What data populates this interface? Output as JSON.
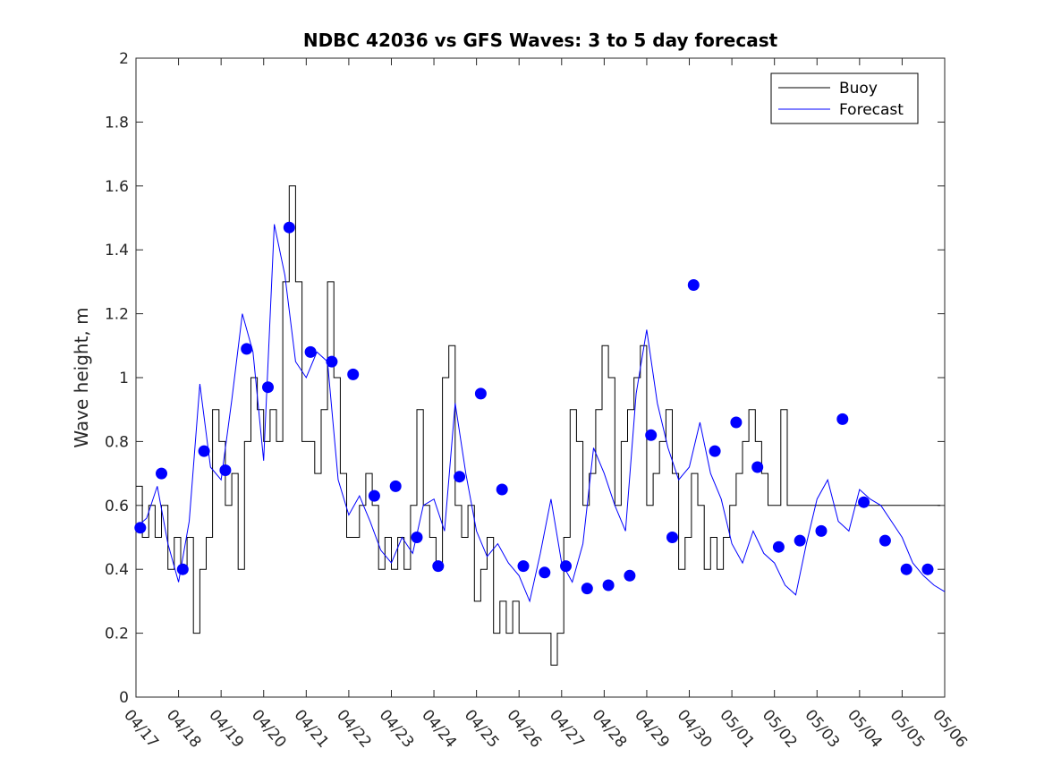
{
  "chart_data": {
    "type": "line",
    "title": "NDBC 42036 vs GFS Waves: 3 to 5 day forecast",
    "xlabel": "",
    "ylabel": "Wave height, m",
    "xlim": [
      0,
      19
    ],
    "ylim": [
      0,
      2
    ],
    "x_tick_labels": [
      "04/17",
      "04/18",
      "04/19",
      "04/20",
      "04/21",
      "04/22",
      "04/23",
      "04/24",
      "04/25",
      "04/26",
      "04/27",
      "04/28",
      "04/29",
      "04/30",
      "05/01",
      "05/02",
      "05/03",
      "05/04",
      "05/05",
      "05/06"
    ],
    "y_tick_labels": [
      "0",
      "0.2",
      "0.4",
      "0.6",
      "0.8",
      "1",
      "1.2",
      "1.4",
      "1.6",
      "1.8",
      "2"
    ],
    "grid": false,
    "legend_position": "top-right",
    "colors": {
      "buoy": "#000000",
      "forecast": "#0000ff",
      "axis": "#262626"
    },
    "series": [
      {
        "name": "Buoy",
        "style": "step",
        "x": [
          0.0,
          0.15,
          0.3,
          0.45,
          0.6,
          0.75,
          0.9,
          1.05,
          1.2,
          1.35,
          1.5,
          1.65,
          1.8,
          1.95,
          2.1,
          2.25,
          2.4,
          2.55,
          2.7,
          2.85,
          3.0,
          3.15,
          3.3,
          3.45,
          3.6,
          3.75,
          3.9,
          4.05,
          4.2,
          4.35,
          4.5,
          4.65,
          4.8,
          4.95,
          5.1,
          5.25,
          5.4,
          5.55,
          5.7,
          5.85,
          6.0,
          6.15,
          6.3,
          6.45,
          6.6,
          6.75,
          6.9,
          7.05,
          7.2,
          7.35,
          7.5,
          7.65,
          7.8,
          7.95,
          8.1,
          8.25,
          8.4,
          8.55,
          8.7,
          8.85,
          9.0,
          9.15,
          9.3,
          9.45,
          9.6,
          9.75,
          9.9,
          10.05,
          10.2,
          10.35,
          10.5,
          10.65,
          10.8,
          10.95,
          11.1,
          11.25,
          11.4,
          11.55,
          11.7,
          11.85,
          12.0,
          12.15,
          12.3,
          12.45,
          12.6,
          12.75,
          12.9,
          13.05,
          13.2,
          13.35,
          13.5,
          13.65,
          13.8,
          13.95,
          14.1,
          14.25,
          14.4,
          14.55,
          14.7,
          14.85,
          15.0,
          15.15,
          15.3,
          15.45,
          15.6,
          15.75,
          15.9,
          16.05,
          16.2,
          16.35,
          16.5,
          16.65,
          16.8,
          16.95,
          17.1,
          17.25,
          17.4,
          17.55,
          17.7,
          17.85,
          18.0,
          18.15,
          18.3,
          18.45,
          18.6,
          18.75,
          18.9
        ],
        "y": [
          0.66,
          0.5,
          0.6,
          0.5,
          0.6,
          0.4,
          0.5,
          0.4,
          0.5,
          0.2,
          0.4,
          0.5,
          0.9,
          0.8,
          0.6,
          0.7,
          0.4,
          0.8,
          1.0,
          0.9,
          0.8,
          0.9,
          0.8,
          1.3,
          1.6,
          1.3,
          0.8,
          0.8,
          0.7,
          0.9,
          1.3,
          1.0,
          0.7,
          0.5,
          0.5,
          0.6,
          0.7,
          0.6,
          0.4,
          0.5,
          0.4,
          0.5,
          0.4,
          0.6,
          0.9,
          0.6,
          0.5,
          0.4,
          1.0,
          1.1,
          0.6,
          0.5,
          0.6,
          0.3,
          0.4,
          0.5,
          0.2,
          0.3,
          0.2,
          0.3,
          0.2,
          0.2,
          0.2,
          0.2,
          0.2,
          0.1,
          0.2,
          0.5,
          0.9,
          0.8,
          0.6,
          0.7,
          0.9,
          1.1,
          1.0,
          0.6,
          0.8,
          0.9,
          1.0,
          1.1,
          0.6,
          0.7,
          0.8,
          0.9,
          0.7,
          0.4,
          0.5,
          0.7,
          0.6,
          0.4,
          0.5,
          0.4,
          0.5,
          0.6,
          0.7,
          0.8,
          0.9,
          0.8,
          0.7,
          0.6,
          0.6,
          0.9,
          0.6,
          0.6,
          0.6,
          0.6,
          0.6,
          0.6,
          0.6,
          0.6,
          0.6,
          0.6,
          0.6,
          0.6,
          0.6,
          0.6,
          0.6,
          0.6,
          0.6,
          0.6,
          0.6,
          0.6,
          0.6,
          0.6,
          0.6,
          0.6,
          0.6
        ]
      },
      {
        "name": "Forecast",
        "style": "line",
        "x": [
          0.0,
          0.25,
          0.5,
          0.75,
          1.0,
          1.25,
          1.5,
          1.75,
          2.0,
          2.25,
          2.5,
          2.75,
          3.0,
          3.25,
          3.5,
          3.75,
          4.0,
          4.25,
          4.5,
          4.75,
          5.0,
          5.25,
          5.5,
          5.75,
          6.0,
          6.25,
          6.5,
          6.75,
          7.0,
          7.25,
          7.5,
          7.75,
          8.0,
          8.25,
          8.5,
          8.75,
          9.0,
          9.25,
          9.5,
          9.75,
          10.0,
          10.25,
          10.5,
          10.75,
          11.0,
          11.25,
          11.5,
          11.75,
          12.0,
          12.25,
          12.5,
          12.75,
          13.0,
          13.25,
          13.5,
          13.75,
          14.0,
          14.25,
          14.5,
          14.75,
          15.0,
          15.25,
          15.5,
          15.75,
          16.0,
          16.25,
          16.5,
          16.75,
          17.0,
          17.25,
          17.5,
          17.75,
          18.0,
          18.25,
          18.5,
          18.75,
          19.0
        ],
        "y": [
          0.53,
          0.56,
          0.66,
          0.48,
          0.36,
          0.55,
          0.98,
          0.72,
          0.68,
          0.93,
          1.2,
          1.08,
          0.74,
          1.48,
          1.32,
          1.05,
          1.0,
          1.08,
          1.05,
          0.68,
          0.57,
          0.63,
          0.55,
          0.46,
          0.42,
          0.5,
          0.45,
          0.6,
          0.62,
          0.52,
          0.92,
          0.7,
          0.52,
          0.44,
          0.48,
          0.42,
          0.38,
          0.3,
          0.45,
          0.62,
          0.42,
          0.36,
          0.48,
          0.78,
          0.7,
          0.6,
          0.52,
          0.95,
          1.15,
          0.92,
          0.78,
          0.68,
          0.72,
          0.86,
          0.7,
          0.62,
          0.48,
          0.42,
          0.52,
          0.45,
          0.42,
          0.35,
          0.32,
          0.48,
          0.62,
          0.68,
          0.55,
          0.52,
          0.65,
          0.62,
          0.6,
          0.55,
          0.5,
          0.42,
          0.38,
          0.35,
          0.33
        ]
      }
    ],
    "forecast_markers": {
      "x": [
        0.1,
        0.6,
        1.1,
        1.6,
        2.1,
        2.6,
        3.1,
        3.6,
        4.1,
        4.6,
        5.1,
        5.6,
        6.1,
        6.6,
        7.1,
        7.6,
        8.1,
        8.6,
        9.1,
        9.6,
        10.1,
        10.6,
        11.1,
        11.6,
        12.1,
        12.6,
        13.1,
        13.6,
        14.1,
        14.6,
        15.1,
        15.6,
        16.1,
        16.6,
        17.1,
        17.6,
        18.1,
        18.6
      ],
      "y": [
        0.53,
        0.7,
        0.4,
        0.77,
        0.71,
        1.09,
        0.97,
        1.47,
        1.08,
        1.05,
        1.01,
        0.63,
        0.66,
        0.5,
        0.41,
        0.69,
        0.95,
        0.65,
        0.41,
        0.39,
        0.41,
        0.34,
        0.35,
        0.38,
        0.82,
        0.5,
        1.29,
        0.77,
        0.86,
        0.72,
        0.47,
        0.49,
        0.52,
        0.87,
        0.61,
        0.49,
        0.4,
        0.4
      ]
    }
  }
}
